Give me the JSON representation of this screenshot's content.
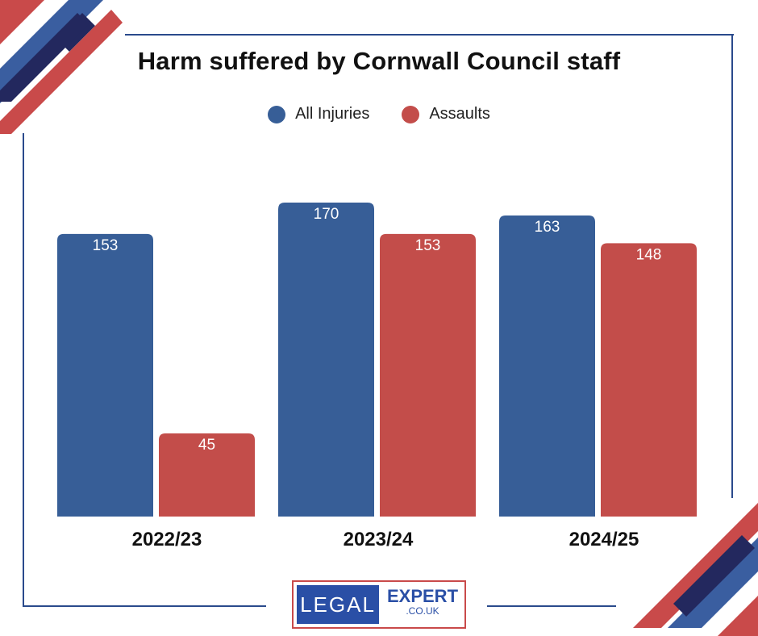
{
  "chart_data": {
    "type": "bar",
    "title": "Harm suffered by Cornwall Council staff",
    "xlabel": "",
    "ylabel": "",
    "categories": [
      "2022/23",
      "2023/24",
      "2024/25"
    ],
    "series": [
      {
        "name": "All Injuries",
        "values": [
          153,
          170,
          163
        ],
        "color": "#375e97"
      },
      {
        "name": "Assaults",
        "values": [
          45,
          153,
          148
        ],
        "color": "#c34d4a"
      }
    ],
    "ylim": [
      0,
      170
    ],
    "grid": false,
    "data_labels": true,
    "legend_position": "top-center"
  },
  "logo": {
    "left_text": "LEGAL",
    "right_text": "EXPERT",
    "sub_text": ".CO.UK"
  },
  "colors": {
    "frame": "#2a4a8c",
    "navy": "#23285e",
    "blue": "#3a5ea0",
    "red": "#c94a4a"
  }
}
